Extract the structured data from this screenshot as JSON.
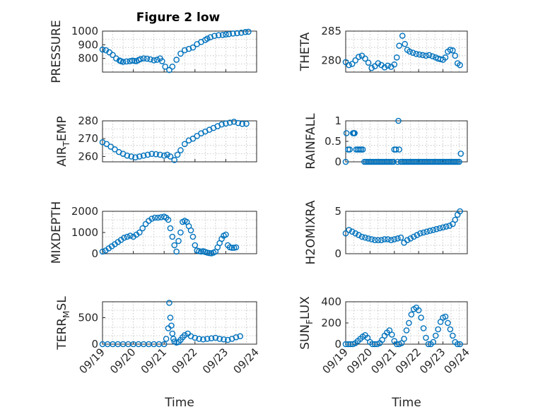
{
  "title": "Figure 2 low",
  "marker_color": "#0072BD",
  "x_ticks": [
    "09/19",
    "09/20",
    "09/21",
    "09/22",
    "09/23",
    "09/24"
  ],
  "chart_data": [
    {
      "type": "scatter",
      "ylabel": "PRESSURE",
      "ylim": [
        700,
        1000
      ],
      "yticks": [
        800,
        900,
        1000
      ],
      "xlabel": "",
      "x": [
        0,
        0.33,
        0.66,
        1.0,
        1.33,
        1.66,
        1.8,
        2.0,
        2.33,
        2.66,
        2.9,
        3.1,
        3.3,
        3.5,
        3.7,
        4.0,
        4.33,
        4.66,
        5.0,
        5.3,
        5.6,
        5.8,
        6.1,
        6.5,
        6.8,
        7.2,
        7.6,
        8.0,
        8.4,
        8.8,
        9.2,
        9.6,
        10.0,
        10.2,
        10.5,
        10.9,
        11.3,
        11.7,
        12.0,
        12.3,
        12.7,
        13.1,
        13.5,
        13.9,
        14.2
      ],
      "y": [
        865,
        860,
        845,
        825,
        800,
        785,
        780,
        775,
        778,
        780,
        784,
        782,
        780,
        788,
        795,
        800,
        798,
        793,
        786,
        790,
        800,
        780,
        740,
        715,
        740,
        790,
        835,
        860,
        870,
        880,
        905,
        920,
        935,
        945,
        955,
        965,
        970,
        972,
        975,
        978,
        982,
        985,
        988,
        993,
        995
      ]
    },
    {
      "type": "scatter",
      "ylabel": "THETA",
      "ylim": [
        278,
        285
      ],
      "yticks": [
        280,
        285
      ],
      "xlabel": "",
      "x": [
        0,
        0.4,
        0.8,
        1.2,
        1.6,
        2.0,
        2.4,
        2.8,
        3.2,
        3.6,
        4.0,
        4.4,
        4.8,
        5.2,
        5.6,
        6.0,
        6.3,
        6.6,
        7.0,
        7.3,
        7.6,
        7.9,
        8.3,
        8.7,
        9.1,
        9.5,
        9.9,
        10.3,
        10.7,
        11.1,
        11.4,
        11.7,
        12.0,
        12.3,
        12.6,
        12.9,
        13.2,
        13.5,
        13.8,
        14.1
      ],
      "y": [
        279.7,
        279.2,
        279.4,
        280.0,
        280.6,
        280.8,
        280.3,
        279.6,
        278.7,
        279.0,
        279.5,
        279.2,
        278.8,
        279.1,
        278.9,
        279.3,
        280.5,
        282.5,
        284.2,
        282.8,
        281.8,
        281.5,
        281.3,
        281.1,
        281.0,
        280.9,
        280.8,
        280.9,
        280.7,
        280.5,
        280.3,
        280.2,
        280.1,
        280.5,
        281.5,
        281.8,
        281.7,
        280.8,
        279.5,
        279.2
      ]
    },
    {
      "type": "scatter",
      "ylabel": "AIR_TEMP",
      "ylim": [
        257,
        280
      ],
      "yticks": [
        260,
        270,
        280
      ],
      "xlabel": "",
      "x": [
        0,
        0.4,
        0.8,
        1.2,
        1.6,
        2.0,
        2.4,
        2.8,
        3.2,
        3.6,
        4.0,
        4.4,
        4.8,
        5.2,
        5.6,
        6.0,
        6.3,
        6.6,
        7.0,
        7.3,
        7.6,
        8.0,
        8.4,
        8.8,
        9.2,
        9.6,
        10.0,
        10.4,
        10.8,
        11.2,
        11.6,
        12.0,
        12.4,
        12.8,
        13.2,
        13.6,
        14.0
      ],
      "y": [
        268,
        267,
        265.5,
        264,
        262.5,
        261.5,
        260.5,
        260,
        259.5,
        260,
        260.5,
        261,
        261.5,
        261.3,
        261,
        260.5,
        261,
        260,
        258,
        261,
        263.5,
        267,
        269,
        270,
        271.5,
        273,
        274,
        275,
        276,
        277,
        278,
        278.5,
        279,
        279.5,
        278.8,
        278.3,
        278.4
      ]
    },
    {
      "type": "scatter",
      "ylabel": "RAINFALL",
      "ylim": [
        0,
        1
      ],
      "yticks": [
        0,
        0.5,
        1
      ],
      "xlabel": "",
      "x": [
        0.0,
        0.1,
        0.3,
        0.5,
        0.9,
        1.0,
        1.1,
        1.3,
        1.5,
        1.7,
        1.9,
        2.1,
        2.3,
        2.5,
        2.7,
        2.9,
        3.1,
        3.3,
        3.5,
        3.7,
        3.9,
        4.1,
        4.3,
        4.5,
        4.7,
        4.9,
        5.1,
        5.3,
        5.5,
        5.7,
        5.9,
        6.0,
        6.2,
        6.4,
        6.5,
        6.6,
        6.8,
        7.0,
        7.2,
        7.4,
        7.6,
        7.8,
        8.0,
        8.2,
        8.4,
        8.6,
        8.8,
        9.0,
        9.2,
        9.4,
        9.6,
        9.8,
        10.0,
        10.2,
        10.4,
        10.6,
        10.8,
        11.0,
        11.2,
        11.4,
        11.6,
        11.8,
        12.0,
        12.2,
        12.4,
        12.6,
        12.8,
        13.0,
        13.2,
        13.4,
        13.6,
        13.8,
        14.0,
        14.2
      ],
      "y": [
        0,
        0.7,
        0.3,
        0.3,
        0.7,
        0.7,
        0.7,
        0.3,
        0.3,
        0.3,
        0.3,
        0.3,
        0,
        0,
        0,
        0,
        0,
        0,
        0,
        0,
        0,
        0,
        0,
        0,
        0,
        0,
        0,
        0,
        0,
        0,
        0,
        0.3,
        0.3,
        0,
        1.0,
        0.3,
        0,
        0,
        0,
        0,
        0,
        0,
        0,
        0,
        0,
        0,
        0,
        0,
        0,
        0,
        0,
        0,
        0,
        0,
        0,
        0,
        0,
        0,
        0,
        0,
        0,
        0,
        0,
        0,
        0,
        0,
        0,
        0,
        0,
        0,
        0,
        0,
        0,
        0.2
      ]
    },
    {
      "type": "scatter",
      "ylabel": "MIXDEPTH",
      "ylim": [
        0,
        2000
      ],
      "yticks": [
        0,
        1000,
        2000
      ],
      "xlabel": "",
      "x": [
        0,
        0.3,
        0.6,
        0.9,
        1.2,
        1.5,
        1.8,
        2.1,
        2.4,
        2.7,
        3.0,
        3.3,
        3.6,
        3.9,
        4.2,
        4.5,
        4.8,
        5.1,
        5.4,
        5.7,
        6.0,
        6.2,
        6.4,
        6.6,
        6.8,
        7.0,
        7.2,
        7.4,
        7.6,
        7.8,
        8.0,
        8.2,
        8.4,
        8.6,
        8.8,
        9.0,
        9.2,
        9.4,
        9.6,
        9.8,
        10.0,
        10.2,
        10.4,
        10.6,
        10.8,
        11.0,
        11.2,
        11.4,
        11.6,
        11.8,
        12.0,
        12.2,
        12.4,
        12.6,
        12.8,
        13.0
      ],
      "y": [
        100,
        150,
        250,
        350,
        450,
        550,
        650,
        750,
        800,
        850,
        800,
        900,
        1000,
        1200,
        1400,
        1550,
        1650,
        1700,
        1700,
        1720,
        1750,
        1700,
        1600,
        1200,
        800,
        400,
        100,
        600,
        1000,
        1500,
        1550,
        1500,
        1300,
        1100,
        800,
        400,
        150,
        120,
        100,
        120,
        80,
        50,
        30,
        20,
        50,
        100,
        300,
        500,
        700,
        850,
        900,
        400,
        300,
        280,
        280,
        300
      ]
    },
    {
      "type": "scatter",
      "ylabel": "H2OMIXRA",
      "ylim": [
        0,
        5
      ],
      "yticks": [
        0,
        5
      ],
      "xlabel": "",
      "x": [
        0,
        0.4,
        0.8,
        1.2,
        1.6,
        2.0,
        2.4,
        2.8,
        3.2,
        3.6,
        4.0,
        4.4,
        4.8,
        5.2,
        5.6,
        6.0,
        6.4,
        6.8,
        7.2,
        7.6,
        8.0,
        8.4,
        8.8,
        9.2,
        9.6,
        10.0,
        10.4,
        10.8,
        11.2,
        11.6,
        12.0,
        12.4,
        12.8,
        13.2,
        13.5,
        13.8,
        14.1
      ],
      "y": [
        2.4,
        2.8,
        2.6,
        2.4,
        2.2,
        2.0,
        1.9,
        1.8,
        1.7,
        1.6,
        1.6,
        1.6,
        1.7,
        1.7,
        1.6,
        1.7,
        1.8,
        1.9,
        1.3,
        1.6,
        1.8,
        2.0,
        2.2,
        2.4,
        2.5,
        2.6,
        2.7,
        2.8,
        2.9,
        3.0,
        3.1,
        3.2,
        3.3,
        3.5,
        4.0,
        4.6,
        5.0
      ]
    },
    {
      "type": "scatter",
      "ylabel": "TERR_MSL",
      "ylim": [
        0,
        800
      ],
      "yticks": [
        0,
        500
      ],
      "xlabel": "Time",
      "x": [
        0,
        0.5,
        1.0,
        1.5,
        2.0,
        2.5,
        3.0,
        3.5,
        4.0,
        4.5,
        5.0,
        5.5,
        6.0,
        6.2,
        6.4,
        6.5,
        6.6,
        6.7,
        6.8,
        6.9,
        7.0,
        7.2,
        7.4,
        7.6,
        7.8,
        8.0,
        8.3,
        8.6,
        9.0,
        9.4,
        9.8,
        10.2,
        10.6,
        11.0,
        11.4,
        11.8,
        12.2,
        12.6,
        13.0,
        13.4
      ],
      "y": [
        0,
        0,
        0,
        0,
        0,
        0,
        0,
        0,
        0,
        0,
        0,
        0,
        0,
        100,
        300,
        780,
        500,
        350,
        200,
        100,
        50,
        30,
        40,
        80,
        130,
        170,
        200,
        150,
        120,
        100,
        90,
        100,
        110,
        120,
        100,
        90,
        80,
        100,
        130,
        150
      ]
    },
    {
      "type": "scatter",
      "ylabel": "SUN_FLUX",
      "ylim": [
        0,
        400
      ],
      "yticks": [
        0,
        200,
        400
      ],
      "xlabel": "Time",
      "x": [
        0,
        0.3,
        0.6,
        0.9,
        1.2,
        1.5,
        1.8,
        2.1,
        2.4,
        2.7,
        3.0,
        3.3,
        3.6,
        3.9,
        4.2,
        4.5,
        4.8,
        5.1,
        5.4,
        5.7,
        6.0,
        6.3,
        6.6,
        6.9,
        7.2,
        7.5,
        7.8,
        8.1,
        8.4,
        8.7,
        9.0,
        9.3,
        9.6,
        9.9,
        10.2,
        10.5,
        10.8,
        11.1,
        11.4,
        11.7,
        12.0,
        12.3,
        12.6,
        12.9,
        13.2,
        13.5,
        13.8,
        14.1
      ],
      "y": [
        0,
        0,
        0,
        0,
        10,
        30,
        50,
        70,
        85,
        60,
        20,
        0,
        0,
        0,
        10,
        40,
        80,
        110,
        130,
        90,
        30,
        0,
        0,
        10,
        50,
        130,
        200,
        280,
        330,
        345,
        320,
        250,
        150,
        60,
        0,
        0,
        20,
        80,
        140,
        210,
        250,
        260,
        200,
        140,
        80,
        20,
        0,
        0
      ]
    }
  ]
}
